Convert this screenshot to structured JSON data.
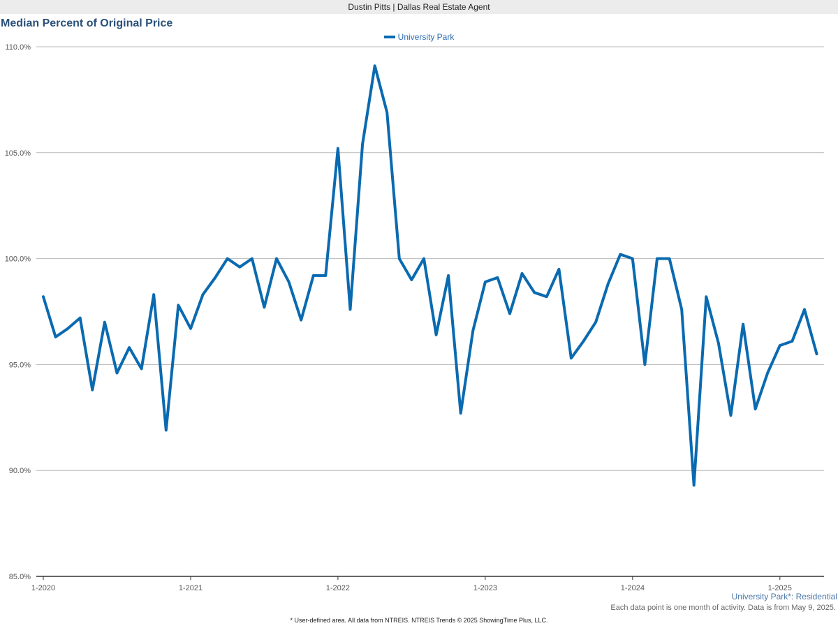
{
  "header": {
    "agent": "Dustin Pitts | Dallas Real Estate Agent"
  },
  "chart_data": {
    "type": "line",
    "title": "Median Percent of Original Price",
    "xlabel": "",
    "ylabel": "",
    "ylim": [
      85,
      110
    ],
    "y_ticks": [
      85,
      90,
      95,
      100,
      105,
      110
    ],
    "y_tick_labels": [
      "85.0%",
      "90.0%",
      "95.0%",
      "100.0%",
      "105.0%",
      "110.0%"
    ],
    "x_tick_labels": [
      "1-2020",
      "1-2021",
      "1-2022",
      "1-2023",
      "1-2024",
      "1-2025"
    ],
    "start": "2020-01",
    "legend_position": "top-center",
    "grid": true,
    "series": [
      {
        "name": "University Park",
        "color": "#0a6ab0",
        "values": [
          98.2,
          96.3,
          96.7,
          97.2,
          93.8,
          97.0,
          94.6,
          95.8,
          94.8,
          98.3,
          91.9,
          97.8,
          96.7,
          98.3,
          99.1,
          100.0,
          99.6,
          100.0,
          97.7,
          100.0,
          98.9,
          97.1,
          99.2,
          99.2,
          105.2,
          97.6,
          105.4,
          109.1,
          106.9,
          100.0,
          99.0,
          100.0,
          96.4,
          99.2,
          92.7,
          96.6,
          98.9,
          99.1,
          97.4,
          99.3,
          98.4,
          98.2,
          99.5,
          95.3,
          96.1,
          97.0,
          98.8,
          100.2,
          100.0,
          95.0,
          100.0,
          100.0,
          97.6,
          89.3,
          98.2,
          96.0,
          92.6,
          96.9,
          92.9,
          94.6,
          95.9,
          96.1,
          97.6,
          95.5
        ]
      }
    ]
  },
  "subtitle": "University Park*: Residential",
  "note": "Each data point is one month of activity. Data is from May 9, 2025.",
  "footer": "* User-defined area. All data from NTREIS. NTREIS Trends © 2025 ShowingTime Plus, LLC."
}
